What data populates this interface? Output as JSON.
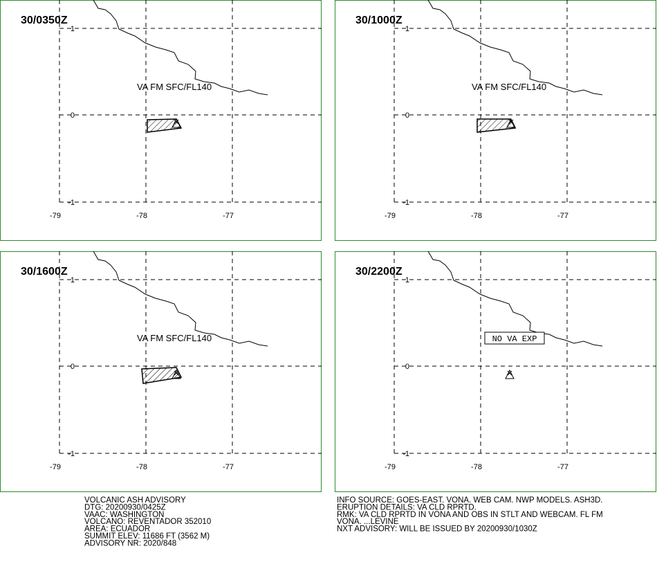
{
  "axes": {
    "lat": [
      "1",
      "0",
      "-1"
    ],
    "lon": [
      "-79",
      "-78",
      "-77"
    ]
  },
  "panels": [
    {
      "time": "30/0350Z",
      "label": "VA FM SFC/FL140"
    },
    {
      "time": "30/1000Z",
      "label": "VA FM SFC/FL140"
    },
    {
      "time": "30/1600Z",
      "label": "VA FM SFC/FL140"
    },
    {
      "time": "30/2200Z",
      "label": "NO VA EXP"
    }
  ],
  "advisory": [
    "VOLCANIC ASH ADVISORY",
    "DTG: 20200930/0425Z",
    "VAAC: WASHINGTON",
    "VOLCANO: REVENTADOR 352010",
    "AREA: ECUADOR",
    "SUMMIT ELEV: 11686 FT (3562 M)",
    "ADVISORY NR: 2020/848"
  ],
  "remarks": [
    "INFO SOURCE: GOES-EAST. VONA. WEB CAM. NWP MODELS. ASH3D.",
    "ERUPTION DETAILS: VA CLD RPRTD.",
    "RMK: VA CLD RPRTD IN VONA AND OBS IN STLT AND WEBCAM. FL FM",
    "VONA. ...LEVINE",
    "NXT ADVISORY: WILL BE ISSUED BY 20200930/1030Z"
  ]
}
